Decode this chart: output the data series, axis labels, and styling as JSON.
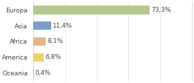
{
  "categories": [
    "Europa",
    "Asia",
    "Africa",
    "America",
    "Oceania"
  ],
  "values": [
    73.3,
    11.4,
    8.1,
    6.8,
    0.4
  ],
  "labels": [
    "73,3%",
    "11,4%",
    "8,1%",
    "6,8%",
    "0,4%"
  ],
  "bar_colors": [
    "#b5c98e",
    "#7b9fc7",
    "#e8b48a",
    "#f0cf6e",
    "#e8a0a0"
  ],
  "background_color": "#ffffff",
  "label_fontsize": 6.5,
  "category_fontsize": 6.5,
  "xlim": [
    0,
    100
  ],
  "bar_height": 0.55,
  "grid_color": "#dddddd",
  "grid_linewidth": 0.5,
  "text_color": "#444444"
}
